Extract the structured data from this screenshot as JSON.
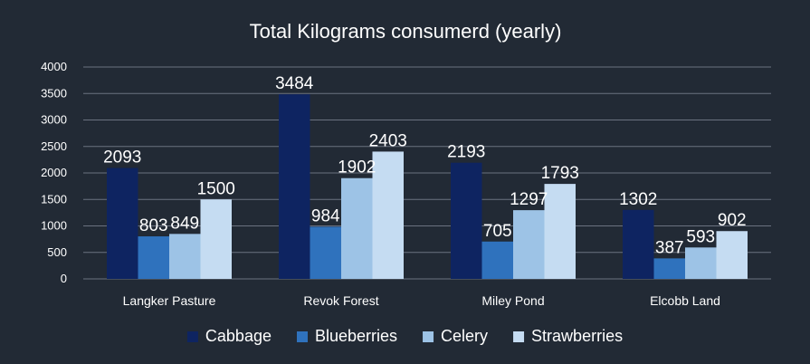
{
  "chart_data": {
    "type": "bar",
    "title": "Total Kilograms consumerd (yearly)",
    "categories": [
      "Langker Pasture",
      "Revok Forest",
      "Miley Pond",
      "Elcobb Land"
    ],
    "series": [
      {
        "name": "Cabbage",
        "color": "#0e2461",
        "values": [
          2093,
          3484,
          2193,
          1302
        ]
      },
      {
        "name": "Blueberries",
        "color": "#2f72bd",
        "values": [
          803,
          984,
          705,
          387
        ]
      },
      {
        "name": "Celery",
        "color": "#9dc3e6",
        "values": [
          849,
          1902,
          1297,
          593
        ]
      },
      {
        "name": "Strawberries",
        "color": "#c5dcf2",
        "values": [
          1500,
          2403,
          1793,
          902
        ]
      }
    ],
    "ylim": [
      0,
      4000
    ],
    "yticks": [
      "0",
      "500",
      "1000",
      "1500",
      "2000",
      "2500",
      "3000",
      "3500",
      "4000"
    ],
    "grid": true,
    "legend_position": "bottom"
  },
  "colors": {
    "background": "#222a35",
    "text": "#ffffff",
    "grid": "#6b7280"
  }
}
